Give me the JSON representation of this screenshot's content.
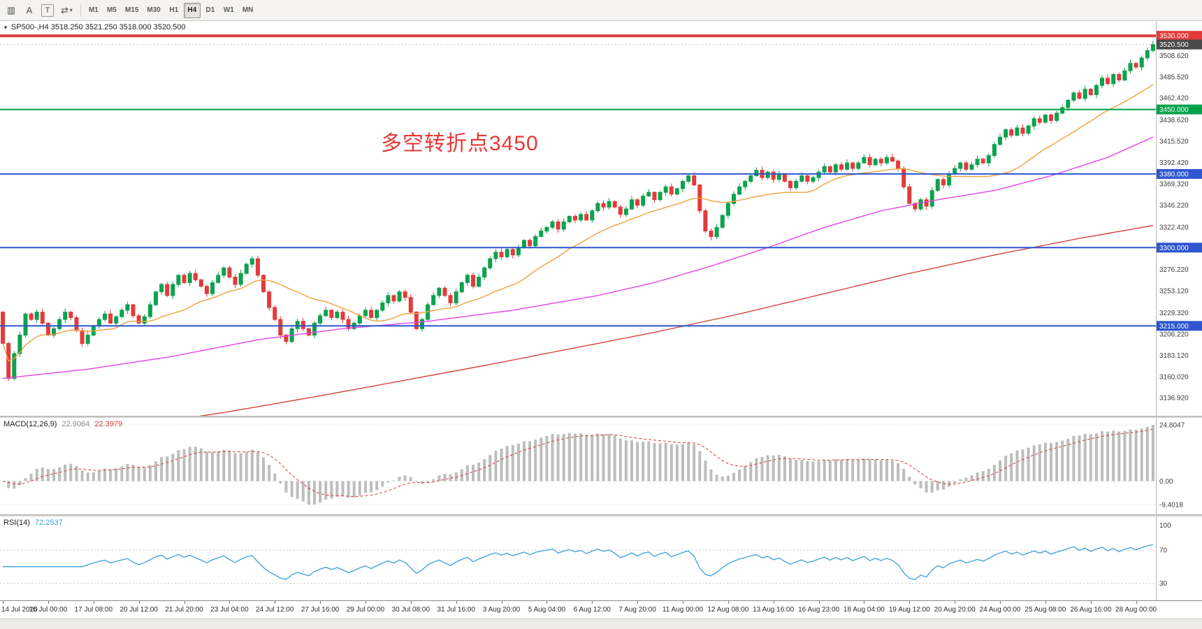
{
  "toolbar": {
    "tools": [
      {
        "name": "chart-window-icon",
        "glyph": "▥"
      },
      {
        "name": "font-tool-icon",
        "glyph": "A"
      },
      {
        "name": "text-tool-icon",
        "glyph": "T",
        "boxed": true
      },
      {
        "name": "cursor-mode-icon",
        "glyph": "⇄",
        "caret": true
      }
    ],
    "timeframes": [
      "M1",
      "M5",
      "M15",
      "M30",
      "H1",
      "H4",
      "D1",
      "W1",
      "MN"
    ],
    "active_timeframe": "H4"
  },
  "symbol_header": {
    "text": "SP500-,H4  3518.250 3521.250 3518.000 3520.500"
  },
  "annotation": {
    "text": "多空转折点3450",
    "color": "#e53935"
  },
  "chart_data": {
    "type": "candlestick",
    "symbol": "SP500-",
    "timeframe": "H4",
    "price_max": 3540,
    "price_min": 3128,
    "open_first": 3230,
    "closes": [
      3196,
      3158,
      3185,
      3205,
      3228,
      3222,
      3230,
      3218,
      3205,
      3212,
      3222,
      3230,
      3224,
      3210,
      3196,
      3205,
      3215,
      3222,
      3228,
      3218,
      3225,
      3232,
      3238,
      3226,
      3218,
      3225,
      3238,
      3252,
      3260,
      3248,
      3260,
      3270,
      3262,
      3272,
      3265,
      3258,
      3250,
      3262,
      3270,
      3278,
      3268,
      3260,
      3272,
      3282,
      3288,
      3270,
      3252,
      3235,
      3222,
      3205,
      3198,
      3212,
      3220,
      3212,
      3205,
      3218,
      3226,
      3232,
      3224,
      3230,
      3222,
      3212,
      3218,
      3226,
      3232,
      3224,
      3232,
      3240,
      3248,
      3242,
      3252,
      3246,
      3230,
      3212,
      3222,
      3238,
      3248,
      3256,
      3248,
      3240,
      3252,
      3262,
      3270,
      3258,
      3268,
      3278,
      3288,
      3295,
      3290,
      3298,
      3292,
      3300,
      3308,
      3302,
      3312,
      3318,
      3322,
      3328,
      3320,
      3328,
      3334,
      3330,
      3336,
      3330,
      3340,
      3348,
      3344,
      3350,
      3344,
      3336,
      3342,
      3352,
      3346,
      3356,
      3360,
      3352,
      3360,
      3366,
      3358,
      3364,
      3372,
      3378,
      3368,
      3340,
      3318,
      3312,
      3322,
      3335,
      3348,
      3358,
      3366,
      3372,
      3378,
      3384,
      3376,
      3382,
      3374,
      3380,
      3372,
      3365,
      3372,
      3378,
      3372,
      3376,
      3382,
      3388,
      3382,
      3390,
      3385,
      3392,
      3386,
      3392,
      3398,
      3390,
      3396,
      3392,
      3398,
      3394,
      3386,
      3366,
      3348,
      3342,
      3352,
      3345,
      3362,
      3374,
      3368,
      3380,
      3386,
      3392,
      3385,
      3390,
      3396,
      3392,
      3400,
      3412,
      3420,
      3428,
      3422,
      3430,
      3424,
      3432,
      3440,
      3436,
      3444,
      3438,
      3446,
      3452,
      3460,
      3468,
      3462,
      3472,
      3466,
      3476,
      3484,
      3478,
      3488,
      3482,
      3492,
      3500,
      3496,
      3506,
      3514,
      3520.5
    ],
    "up_color": "#0ca24e",
    "down_color": "#e23b3b",
    "grid_labels": [
      3508.62,
      3485.52,
      3462.42,
      3438.62,
      3415.52,
      3392.42,
      3369.32,
      3346.22,
      3322.42,
      3276.22,
      3253.12,
      3229.32,
      3206.22,
      3183.12,
      3160.02,
      3136.92
    ],
    "hlines": [
      {
        "price": 3530.0,
        "label": "3530.000",
        "color": "#e03a3a",
        "width": 4
      },
      {
        "price": 3450.0,
        "label": "3450.000",
        "color": "#00a14b",
        "width": 2
      },
      {
        "price": 3380.0,
        "label": "3380.000",
        "color": "#2f55cf",
        "width": 2
      },
      {
        "price": 3300.0,
        "label": "3300.000",
        "color": "#2f55cf",
        "width": 2
      },
      {
        "price": 3215.0,
        "label": "3215.000",
        "color": "#2f55cf",
        "width": 2
      }
    ],
    "current_price": {
      "value": 3520.5,
      "label": "3520.500",
      "badge_color": "#4a4a4a"
    },
    "ma": {
      "fast": {
        "color": "#efa23b",
        "period": 20
      },
      "mid": {
        "color": "#e544e5",
        "anchors": [
          [
            0,
            3158
          ],
          [
            15,
            3168
          ],
          [
            30,
            3182
          ],
          [
            45,
            3200
          ],
          [
            60,
            3212
          ],
          [
            75,
            3220
          ],
          [
            90,
            3232
          ],
          [
            105,
            3248
          ],
          [
            115,
            3262
          ],
          [
            125,
            3280
          ],
          [
            135,
            3300
          ],
          [
            145,
            3322
          ],
          [
            155,
            3340
          ],
          [
            165,
            3352
          ],
          [
            175,
            3362
          ],
          [
            185,
            3378
          ],
          [
            195,
            3398
          ],
          [
            203,
            3420
          ]
        ]
      },
      "slow": {
        "color": "#d6453c",
        "anchors": [
          [
            0,
            3088
          ],
          [
            20,
            3103
          ],
          [
            40,
            3122
          ],
          [
            55,
            3138
          ],
          [
            70,
            3155
          ],
          [
            85,
            3172
          ],
          [
            100,
            3190
          ],
          [
            115,
            3208
          ],
          [
            130,
            3228
          ],
          [
            145,
            3250
          ],
          [
            160,
            3272
          ],
          [
            175,
            3292
          ],
          [
            190,
            3310
          ],
          [
            203,
            3324
          ]
        ]
      }
    },
    "macd": {
      "label": "MACD(12,26,9)",
      "value_main": "22.9064",
      "value_signal": "22.3979",
      "axis": [
        "24.8047",
        "0.00",
        "-9.4018"
      ],
      "hist_color": "#bdbdbd",
      "signal_color": "#d43a3a"
    },
    "rsi": {
      "label": "RSI(14)",
      "value": "72.2537",
      "axis": [
        "100",
        "70",
        "30"
      ],
      "levels": [
        70,
        30
      ],
      "line_color": "#3a9fd8"
    },
    "time_labels": [
      "14 Jul 2020",
      "16 Jul 00:00",
      "17 Jul 08:00",
      "20 Jul 12:00",
      "21 Jul 20:00",
      "23 Jul 04:00",
      "24 Jul 12:00",
      "27 Jul 16:00",
      "29 Jul 00:00",
      "30 Jul 08:00",
      "31 Jul 16:00",
      "3 Aug 20:00",
      "5 Aug 04:00",
      "6 Aug 12:00",
      "7 Aug 20:00",
      "11 Aug 00:00",
      "12 Aug 08:00",
      "13 Aug 16:00",
      "16 Aug 23:00",
      "18 Aug 04:00",
      "19 Aug 12:00",
      "20 Aug 20:00",
      "24 Aug 00:00",
      "25 Aug 08:00",
      "26 Aug 16:00",
      "28 Aug 00:00"
    ]
  }
}
